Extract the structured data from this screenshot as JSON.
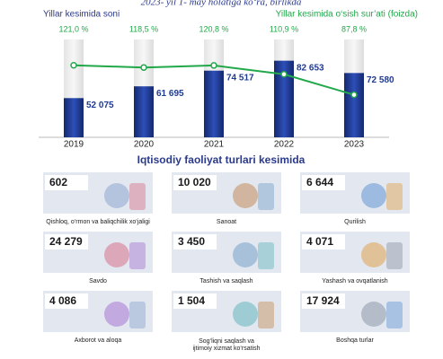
{
  "chart_data": {
    "type": "bar-line",
    "subtitle": "2023- yil 1- may holatiga ko‘ra, birlikda",
    "left_label": "Yillar  kesimida  soni",
    "right_label": "Yillar  kesimida  o‘sish sur’ati (foizda)",
    "categories": [
      "2019",
      "2020",
      "2021",
      "2022",
      "2023"
    ],
    "series": [
      {
        "name": "Yillar  kesimida  soni",
        "color": "#1f3a93",
        "values": [
          52075,
          61695,
          74517,
          82653,
          72580
        ],
        "value_labels": [
          "52 075",
          "61 695",
          "74 517",
          "82 653",
          "72 580"
        ]
      },
      {
        "name": "Yillar  kesimida  o‘sish sur’ati (foizda)",
        "color": "#22a84a",
        "axis": "y2",
        "values": [
          121.0,
          118.5,
          120.8,
          110.9,
          87.8
        ],
        "value_labels": [
          "121,0 %",
          "118,5 %",
          "120,8 %",
          "110,9 %",
          "87,8 %"
        ]
      }
    ],
    "ylim": [
      20000,
      100000
    ],
    "y2lim": [
      40,
      150
    ]
  },
  "section": {
    "title": "Iqtisodiy faoliyat turlari kesimida",
    "tiles": [
      {
        "value": "602",
        "label": "Qishloq, o‘rmon va baliqchilik xo‘jaligi"
      },
      {
        "value": "10 020",
        "label": "Sanoat"
      },
      {
        "value": "6 644",
        "label": "Qurilish"
      },
      {
        "value": "24 279",
        "label": "Savdo"
      },
      {
        "value": "3 450",
        "label": "Tashish va saqlash"
      },
      {
        "value": "4 071",
        "label": "Yashash va ovqatlanish"
      },
      {
        "value": "4 086",
        "label": "Axborot va aloqa"
      },
      {
        "value": "1 504",
        "label": [
          "Sog‘liqni saqlash va",
          "ijtimoiy xizmat ko‘rsatish"
        ]
      },
      {
        "value": "17 924",
        "label": "Boshqa turlar"
      }
    ]
  }
}
